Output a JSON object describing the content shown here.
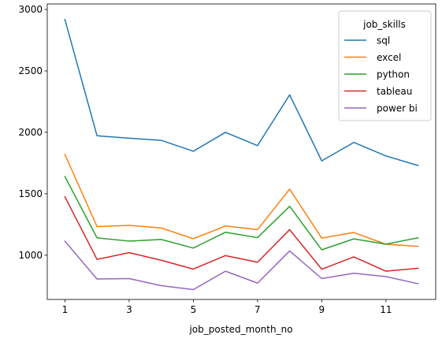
{
  "chart_data": {
    "type": "line",
    "title": "",
    "xlabel": "job_posted_month_no",
    "ylabel": "",
    "x": [
      1,
      2,
      3,
      4,
      5,
      6,
      7,
      8,
      9,
      10,
      11,
      12
    ],
    "xticks": [
      1,
      3,
      5,
      7,
      9,
      11
    ],
    "yticks": [
      1000,
      1500,
      2000,
      2500,
      3000
    ],
    "xlim": [
      0.45,
      12.55
    ],
    "ylim": [
      640,
      3045
    ],
    "grid": false,
    "legend": {
      "title": "job_skills",
      "placement": "top-right"
    },
    "series": [
      {
        "name": "sql",
        "color": "#1f77b4",
        "values": [
          2918,
          1972,
          1952,
          1935,
          1846,
          2000,
          1892,
          2305,
          1768,
          1918,
          1808,
          1730
        ]
      },
      {
        "name": "excel",
        "color": "#ff7f0e",
        "values": [
          1820,
          1233,
          1243,
          1222,
          1134,
          1238,
          1208,
          1538,
          1139,
          1185,
          1089,
          1072
        ]
      },
      {
        "name": "python",
        "color": "#2ca02c",
        "values": [
          1640,
          1141,
          1115,
          1128,
          1058,
          1187,
          1143,
          1398,
          1044,
          1133,
          1090,
          1142
        ]
      },
      {
        "name": "tableau",
        "color": "#d62728",
        "values": [
          1475,
          966,
          1021,
          959,
          887,
          997,
          943,
          1208,
          886,
          987,
          870,
          894
        ]
      },
      {
        "name": "power bi",
        "color": "#9467bd",
        "values": [
          1114,
          806,
          810,
          752,
          720,
          870,
          773,
          1035,
          810,
          853,
          826,
          768
        ]
      }
    ]
  }
}
